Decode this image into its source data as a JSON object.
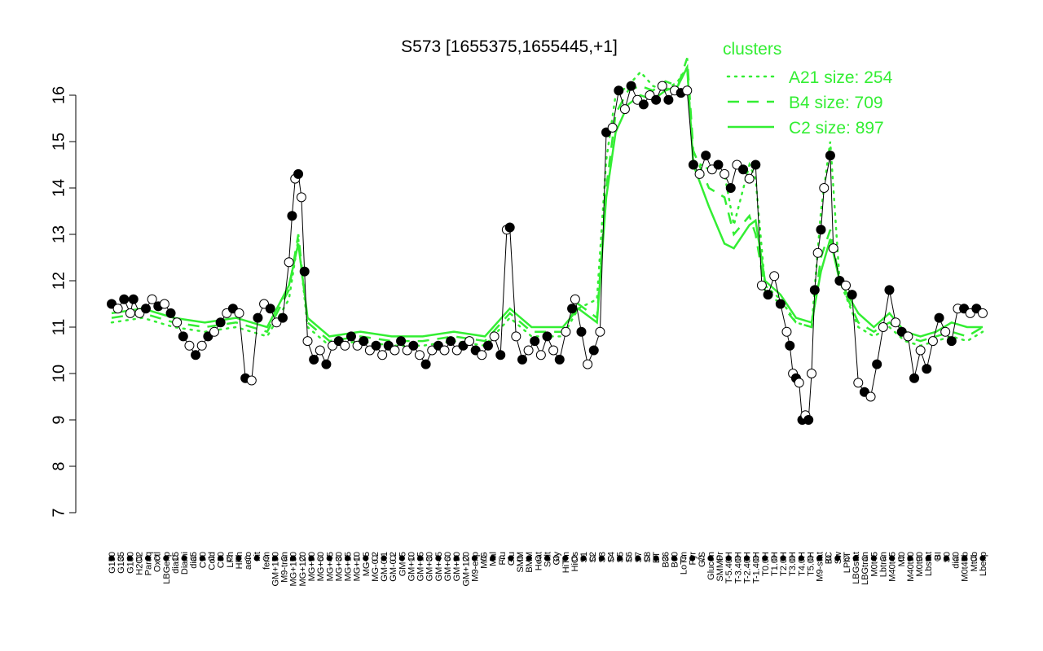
{
  "chart_data": {
    "type": "line",
    "title": "S573 [1655375,1655445,+1]",
    "xlabel": "",
    "ylabel": "",
    "ylim": [
      7,
      16
    ],
    "yticks": [
      7,
      8,
      9,
      10,
      11,
      12,
      13,
      14,
      15,
      16
    ],
    "grid": false,
    "legend": {
      "title": "clusters",
      "placement": "top-right",
      "color": "#33ee33",
      "entries": [
        {
          "label": "A21 size: 254",
          "style": "dotted"
        },
        {
          "label": "B4 size: 709",
          "style": "dashed"
        },
        {
          "label": "C2 size: 897",
          "style": "solid"
        }
      ]
    },
    "x_labels": [
      "G150",
      "G135",
      "G180",
      "H2O2",
      "Paraq",
      "Oxctl",
      "LBGexp",
      "dia15",
      "Diami",
      "dia5",
      "C90",
      "Cold",
      "C30",
      "LPh",
      "HPh",
      "aero",
      "nit",
      "ferm",
      "GM+150",
      "M9-tran",
      "MG+150",
      "MG+120",
      "MG+90",
      "MG+60",
      "MG+45",
      "MG+30",
      "MG+15",
      "MG+10",
      "MG+5",
      "MG-0.2",
      "GM-0.1",
      "GM-0.2",
      "GM+5",
      "GM+10",
      "GM+15",
      "GM+30",
      "GM+45",
      "GM+60",
      "GM+90",
      "GM+120",
      "M9-exp",
      "M/G",
      "Mal",
      "Fru",
      "Glu",
      "SMM",
      "BMM",
      "Heat",
      "Salt",
      "Gly",
      "HiTm",
      "HiOs",
      "S1",
      "S2",
      "S3",
      "S4",
      "S5",
      "S6",
      "S7",
      "S8",
      "BT",
      "B36",
      "B60",
      "LoTm",
      "Pyr",
      "G/S",
      "Glucon",
      "SMMPr",
      "T-5.40H",
      "T-3.40H",
      "T-2.40H",
      "T-1.40H",
      "T0.0H",
      "T1.0H",
      "T2.0H",
      "T3.0H",
      "T4.0H",
      "T5.0H",
      "M9-stat",
      "BC",
      "Sw",
      "LPhT",
      "LBGstat",
      "LBGtran",
      "M0t45",
      "Lbtran",
      "M40t45",
      "Mt0",
      "M40t90",
      "M0t90",
      "Lbstat",
      "BI",
      "S0",
      "dia0",
      "M0t45b",
      "Mt0b",
      "Lbexp"
    ],
    "profile": [
      [
        0,
        11.5
      ],
      [
        2,
        11.4
      ],
      [
        4,
        11.6
      ],
      [
        6,
        11.3
      ],
      [
        7,
        11.6
      ],
      [
        9,
        11.3
      ],
      [
        11,
        11.4
      ],
      [
        13,
        11.6
      ],
      [
        15,
        11.45
      ],
      [
        17,
        11.5
      ],
      [
        19,
        11.3
      ],
      [
        21,
        11.1
      ],
      [
        23,
        10.8
      ],
      [
        25,
        10.6
      ],
      [
        27,
        10.4
      ],
      [
        29,
        10.6
      ],
      [
        31,
        10.8
      ],
      [
        33,
        10.9
      ],
      [
        35,
        11.1
      ],
      [
        37,
        11.3
      ],
      [
        39,
        11.4
      ],
      [
        41,
        11.3
      ],
      [
        43,
        9.9
      ],
      [
        45,
        9.85
      ],
      [
        47,
        11.2
      ],
      [
        49,
        11.5
      ],
      [
        51,
        11.4
      ],
      [
        53,
        11.1
      ],
      [
        55,
        11.2
      ],
      [
        57,
        12.4
      ],
      [
        58,
        13.4
      ],
      [
        59,
        14.2
      ],
      [
        60,
        14.3
      ],
      [
        61,
        13.8
      ],
      [
        62,
        12.2
      ],
      [
        63,
        10.7
      ],
      [
        65,
        10.3
      ],
      [
        67,
        10.5
      ],
      [
        69,
        10.2
      ],
      [
        71,
        10.6
      ],
      [
        73,
        10.7
      ],
      [
        75,
        10.6
      ],
      [
        77,
        10.8
      ],
      [
        79,
        10.6
      ],
      [
        81,
        10.7
      ],
      [
        83,
        10.5
      ],
      [
        85,
        10.6
      ],
      [
        87,
        10.4
      ],
      [
        89,
        10.6
      ],
      [
        91,
        10.5
      ],
      [
        93,
        10.7
      ],
      [
        95,
        10.5
      ],
      [
        97,
        10.6
      ],
      [
        99,
        10.4
      ],
      [
        101,
        10.2
      ],
      [
        103,
        10.5
      ],
      [
        105,
        10.6
      ],
      [
        107,
        10.5
      ],
      [
        109,
        10.7
      ],
      [
        111,
        10.5
      ],
      [
        113,
        10.6
      ],
      [
        115,
        10.7
      ],
      [
        117,
        10.5
      ],
      [
        119,
        10.4
      ],
      [
        121,
        10.6
      ],
      [
        123,
        10.8
      ],
      [
        125,
        10.4
      ],
      [
        127,
        13.1
      ],
      [
        128,
        13.15
      ],
      [
        130,
        10.8
      ],
      [
        132,
        10.3
      ],
      [
        134,
        10.5
      ],
      [
        136,
        10.7
      ],
      [
        138,
        10.4
      ],
      [
        140,
        10.8
      ],
      [
        142,
        10.5
      ],
      [
        144,
        10.3
      ],
      [
        146,
        10.9
      ],
      [
        148,
        11.4
      ],
      [
        149,
        11.6
      ],
      [
        151,
        10.9
      ],
      [
        153,
        10.2
      ],
      [
        155,
        10.5
      ],
      [
        157,
        10.9
      ],
      [
        159,
        15.2
      ],
      [
        161,
        15.3
      ],
      [
        163,
        16.1
      ],
      [
        165,
        15.7
      ],
      [
        167,
        16.2
      ],
      [
        169,
        15.9
      ],
      [
        171,
        15.8
      ],
      [
        173,
        16.0
      ],
      [
        175,
        15.9
      ],
      [
        177,
        16.2
      ],
      [
        179,
        15.9
      ],
      [
        181,
        16.1
      ],
      [
        183,
        16.05
      ],
      [
        185,
        16.1
      ],
      [
        187,
        14.5
      ],
      [
        189,
        14.3
      ],
      [
        191,
        14.7
      ],
      [
        193,
        14.4
      ],
      [
        195,
        14.5
      ],
      [
        197,
        14.3
      ],
      [
        199,
        14.0
      ],
      [
        201,
        14.5
      ],
      [
        203,
        14.4
      ],
      [
        205,
        14.2
      ],
      [
        207,
        14.5
      ],
      [
        209,
        11.9
      ],
      [
        211,
        11.7
      ],
      [
        213,
        12.1
      ],
      [
        215,
        11.5
      ],
      [
        217,
        10.9
      ],
      [
        218,
        10.6
      ],
      [
        219,
        10.0
      ],
      [
        220,
        9.9
      ],
      [
        221,
        9.8
      ],
      [
        222,
        9.0
      ],
      [
        223,
        9.1
      ],
      [
        224,
        9.0
      ],
      [
        225,
        10.0
      ],
      [
        226,
        11.8
      ],
      [
        227,
        12.6
      ],
      [
        228,
        13.1
      ],
      [
        229,
        14.0
      ],
      [
        231,
        14.7
      ],
      [
        232,
        12.7
      ],
      [
        234,
        12.0
      ],
      [
        236,
        11.9
      ],
      [
        238,
        11.7
      ],
      [
        240,
        9.8
      ],
      [
        242,
        9.6
      ],
      [
        244,
        9.5
      ],
      [
        246,
        10.2
      ],
      [
        248,
        11.0
      ],
      [
        250,
        11.8
      ],
      [
        252,
        11.1
      ],
      [
        254,
        10.9
      ],
      [
        256,
        10.8
      ],
      [
        258,
        9.9
      ],
      [
        260,
        10.5
      ],
      [
        262,
        10.1
      ],
      [
        264,
        10.7
      ],
      [
        266,
        11.2
      ],
      [
        268,
        10.9
      ],
      [
        270,
        10.7
      ],
      [
        272,
        11.4
      ],
      [
        274,
        11.4
      ],
      [
        276,
        11.3
      ],
      [
        278,
        11.4
      ],
      [
        280,
        11.3
      ]
    ],
    "series": [
      {
        "name": "A21 size: 254",
        "style": "dotted",
        "points": [
          [
            0,
            11.1
          ],
          [
            10,
            11.2
          ],
          [
            20,
            11.0
          ],
          [
            30,
            10.9
          ],
          [
            40,
            11.0
          ],
          [
            50,
            10.8
          ],
          [
            57,
            11.6
          ],
          [
            60,
            12.9
          ],
          [
            63,
            11.0
          ],
          [
            70,
            10.6
          ],
          [
            80,
            10.7
          ],
          [
            90,
            10.6
          ],
          [
            100,
            10.6
          ],
          [
            110,
            10.7
          ],
          [
            120,
            10.6
          ],
          [
            128,
            11.2
          ],
          [
            135,
            10.8
          ],
          [
            145,
            10.8
          ],
          [
            150,
            11.4
          ],
          [
            156,
            11.6
          ],
          [
            159,
            14.6
          ],
          [
            162,
            16.0
          ],
          [
            166,
            16.2
          ],
          [
            170,
            16.5
          ],
          [
            174,
            16.2
          ],
          [
            178,
            16.1
          ],
          [
            182,
            16.3
          ],
          [
            185,
            16.6
          ],
          [
            187,
            14.6
          ],
          [
            192,
            14.4
          ],
          [
            197,
            14.3
          ],
          [
            200,
            13.2
          ],
          [
            205,
            14.5
          ],
          [
            207,
            14.2
          ],
          [
            210,
            11.9
          ],
          [
            215,
            11.6
          ],
          [
            220,
            11.1
          ],
          [
            225,
            11.0
          ],
          [
            228,
            13.5
          ],
          [
            231,
            15.0
          ],
          [
            234,
            12.0
          ],
          [
            240,
            11.0
          ],
          [
            245,
            10.8
          ],
          [
            250,
            11.0
          ],
          [
            255,
            10.7
          ],
          [
            260,
            10.6
          ],
          [
            265,
            10.7
          ],
          [
            270,
            10.8
          ],
          [
            275,
            10.7
          ],
          [
            280,
            10.9
          ]
        ]
      },
      {
        "name": "B4 size: 709",
        "style": "dashed",
        "points": [
          [
            0,
            11.2
          ],
          [
            10,
            11.3
          ],
          [
            20,
            11.1
          ],
          [
            30,
            11.0
          ],
          [
            40,
            11.1
          ],
          [
            50,
            10.9
          ],
          [
            57,
            11.8
          ],
          [
            60,
            13.0
          ],
          [
            63,
            11.1
          ],
          [
            70,
            10.7
          ],
          [
            80,
            10.8
          ],
          [
            90,
            10.7
          ],
          [
            100,
            10.7
          ],
          [
            110,
            10.8
          ],
          [
            120,
            10.7
          ],
          [
            128,
            11.3
          ],
          [
            135,
            10.9
          ],
          [
            145,
            10.9
          ],
          [
            150,
            11.5
          ],
          [
            156,
            11.2
          ],
          [
            159,
            14.0
          ],
          [
            162,
            15.6
          ],
          [
            166,
            16.1
          ],
          [
            170,
            16.2
          ],
          [
            174,
            16.1
          ],
          [
            178,
            16.3
          ],
          [
            182,
            16.2
          ],
          [
            185,
            16.8
          ],
          [
            187,
            14.8
          ],
          [
            192,
            14.0
          ],
          [
            197,
            13.8
          ],
          [
            200,
            13.0
          ],
          [
            205,
            13.4
          ],
          [
            207,
            13.0
          ],
          [
            210,
            11.8
          ],
          [
            215,
            11.5
          ],
          [
            220,
            11.1
          ],
          [
            225,
            11.0
          ],
          [
            228,
            12.5
          ],
          [
            231,
            13.1
          ],
          [
            234,
            12.0
          ],
          [
            240,
            11.1
          ],
          [
            245,
            10.9
          ],
          [
            250,
            11.1
          ],
          [
            255,
            10.8
          ],
          [
            260,
            10.7
          ],
          [
            265,
            10.8
          ],
          [
            270,
            10.9
          ],
          [
            275,
            10.8
          ],
          [
            280,
            11.0
          ]
        ]
      },
      {
        "name": "C2 size: 897",
        "style": "solid",
        "points": [
          [
            0,
            11.3
          ],
          [
            10,
            11.4
          ],
          [
            20,
            11.2
          ],
          [
            30,
            11.1
          ],
          [
            40,
            11.2
          ],
          [
            50,
            11.0
          ],
          [
            57,
            11.9
          ],
          [
            60,
            12.8
          ],
          [
            63,
            11.2
          ],
          [
            70,
            10.8
          ],
          [
            80,
            10.9
          ],
          [
            90,
            10.8
          ],
          [
            100,
            10.8
          ],
          [
            110,
            10.9
          ],
          [
            120,
            10.8
          ],
          [
            128,
            11.4
          ],
          [
            135,
            11.0
          ],
          [
            145,
            11.0
          ],
          [
            150,
            11.4
          ],
          [
            156,
            11.1
          ],
          [
            159,
            13.8
          ],
          [
            162,
            15.2
          ],
          [
            166,
            15.8
          ],
          [
            170,
            16.0
          ],
          [
            174,
            15.9
          ],
          [
            178,
            16.1
          ],
          [
            182,
            16.2
          ],
          [
            185,
            16.6
          ],
          [
            187,
            14.5
          ],
          [
            192,
            13.6
          ],
          [
            197,
            12.8
          ],
          [
            200,
            12.7
          ],
          [
            205,
            13.2
          ],
          [
            207,
            13.3
          ],
          [
            210,
            12.0
          ],
          [
            215,
            11.7
          ],
          [
            220,
            11.2
          ],
          [
            225,
            11.1
          ],
          [
            228,
            12.2
          ],
          [
            231,
            12.9
          ],
          [
            234,
            12.0
          ],
          [
            240,
            11.3
          ],
          [
            245,
            11.0
          ],
          [
            250,
            11.3
          ],
          [
            255,
            10.9
          ],
          [
            260,
            10.8
          ],
          [
            265,
            10.9
          ],
          [
            270,
            11.1
          ],
          [
            275,
            11.0
          ],
          [
            280,
            11.0
          ]
        ]
      }
    ]
  }
}
